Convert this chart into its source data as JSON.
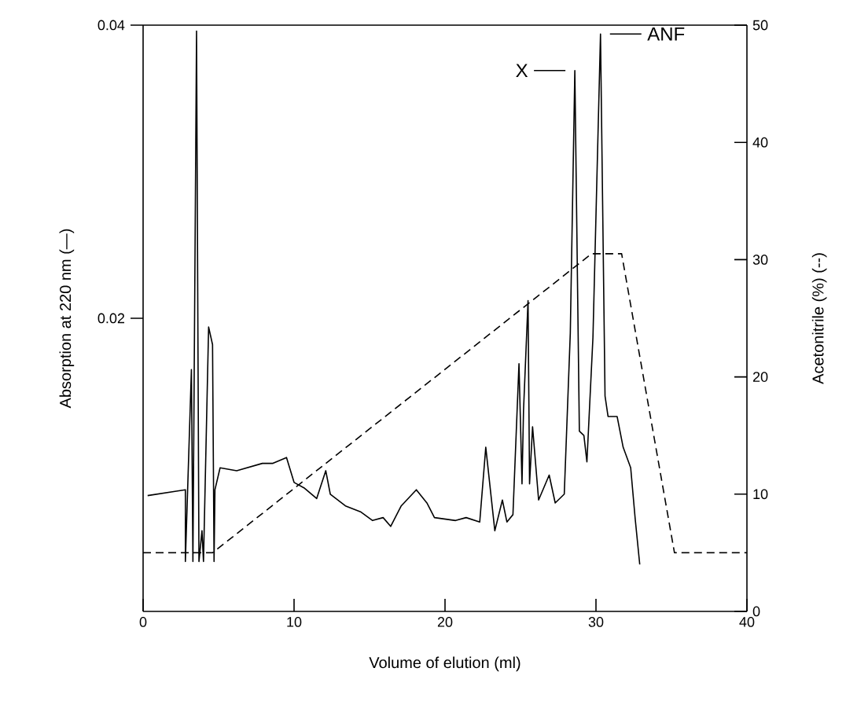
{
  "chart_data": {
    "type": "line",
    "xlabel": "Volume of elution (ml)",
    "ylabel": "Absorption at 220 nm (—)",
    "y2label": "Acetonitrile (%) (--)",
    "xlim": [
      0,
      40
    ],
    "xticks": [
      0,
      10,
      20,
      30,
      40
    ],
    "ylim": [
      0,
      0.04
    ],
    "yticks": [
      {
        "value": 0.02,
        "label": "0.02"
      },
      {
        "value": 0.04,
        "label": "0.04"
      }
    ],
    "y2lim": [
      0,
      50
    ],
    "y2ticks": [
      0,
      10,
      20,
      30,
      40,
      50
    ],
    "grid": false,
    "marker": "none",
    "series": [
      {
        "color": "#000000",
        "line_style": "solid",
        "x": [
          0.3,
          2.2,
          2.8,
          2.8,
          3.2,
          3.3,
          3.54,
          3.7,
          3.9,
          4.0,
          4.34,
          4.6,
          4.7,
          4.76,
          5.1,
          6.2,
          7.9,
          8.6,
          9.5,
          10.0,
          10.7,
          11.5,
          12.1,
          12.4,
          13.4,
          14.4,
          15.2,
          15.9,
          16.4,
          17.1,
          18.1,
          18.8,
          19.3,
          20.7,
          21.4,
          22.3,
          22.7,
          23.3,
          23.8,
          24.1,
          24.5,
          24.9,
          25.1,
          25.2,
          25.5,
          25.6,
          25.8,
          26.2,
          26.9,
          27.3,
          27.9,
          28.3,
          28.6,
          28.9,
          29.2,
          29.4,
          29.8,
          30.3,
          30.6,
          30.8,
          31.4,
          31.8,
          32.3,
          32.6,
          32.9
        ],
        "values": [
          0.0079,
          0.0082,
          0.0083,
          0.0034,
          0.0165,
          0.0034,
          0.0396,
          0.0034,
          0.0055,
          0.0034,
          0.0194,
          0.0182,
          0.0034,
          0.0083,
          0.0098,
          0.0096,
          0.0101,
          0.0101,
          0.0105,
          0.0088,
          0.0084,
          0.0077,
          0.0096,
          0.008,
          0.0072,
          0.0068,
          0.0062,
          0.0064,
          0.0058,
          0.0072,
          0.0083,
          0.0074,
          0.0064,
          0.0062,
          0.0064,
          0.0061,
          0.0112,
          0.0055,
          0.0076,
          0.0061,
          0.0066,
          0.0169,
          0.0087,
          0.0137,
          0.0212,
          0.0087,
          0.0126,
          0.0076,
          0.0093,
          0.0074,
          0.008,
          0.019,
          0.0369,
          0.0123,
          0.012,
          0.0102,
          0.0187,
          0.0394,
          0.0147,
          0.0133,
          0.0133,
          0.0112,
          0.0098,
          0.0063,
          0.0032
        ]
      },
      {
        "color": "#000000",
        "line_style": "dashed",
        "axis": "y2",
        "x": [
          0,
          4.6,
          29.7,
          31.7,
          35.2,
          40
        ],
        "values": [
          5,
          5,
          30.5,
          30.5,
          5,
          5
        ]
      }
    ],
    "annotations": [
      {
        "text": "X",
        "x": 28.6,
        "y": 0.0369
      },
      {
        "text": "ANF",
        "x": 30.3,
        "y": 0.0394
      }
    ]
  }
}
